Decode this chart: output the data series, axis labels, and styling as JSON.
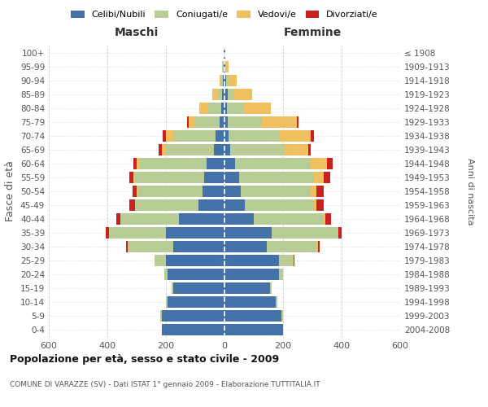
{
  "age_groups": [
    "0-4",
    "5-9",
    "10-14",
    "15-19",
    "20-24",
    "25-29",
    "30-34",
    "35-39",
    "40-44",
    "45-49",
    "50-54",
    "55-59",
    "60-64",
    "65-69",
    "70-74",
    "75-79",
    "80-84",
    "85-89",
    "90-94",
    "95-99",
    "100+"
  ],
  "birth_years": [
    "2004-2008",
    "1999-2003",
    "1994-1998",
    "1989-1993",
    "1984-1988",
    "1979-1983",
    "1974-1978",
    "1969-1973",
    "1964-1968",
    "1959-1963",
    "1954-1958",
    "1949-1953",
    "1944-1948",
    "1939-1943",
    "1934-1938",
    "1929-1933",
    "1924-1928",
    "1919-1923",
    "1914-1918",
    "1909-1913",
    "≤ 1908"
  ],
  "colors": {
    "celibi": "#4472a8",
    "coniugati": "#b8cc96",
    "vedovi": "#f0c060",
    "divorziati": "#cc2020"
  },
  "maschi": {
    "celibi": [
      215,
      215,
      195,
      175,
      195,
      200,
      175,
      200,
      155,
      90,
      75,
      70,
      60,
      35,
      30,
      18,
      12,
      8,
      5,
      3,
      2
    ],
    "coniugati": [
      0,
      5,
      5,
      5,
      10,
      40,
      155,
      195,
      200,
      215,
      220,
      235,
      230,
      165,
      145,
      85,
      45,
      15,
      5,
      2,
      0
    ],
    "vedovi": [
      0,
      0,
      0,
      0,
      0,
      0,
      0,
      0,
      0,
      0,
      5,
      5,
      10,
      15,
      25,
      20,
      30,
      20,
      8,
      2,
      0
    ],
    "divorziati": [
      0,
      0,
      0,
      0,
      0,
      0,
      5,
      10,
      15,
      20,
      15,
      15,
      10,
      10,
      10,
      5,
      0,
      0,
      0,
      0,
      0
    ]
  },
  "femmine": {
    "celibi": [
      200,
      195,
      175,
      155,
      185,
      185,
      145,
      160,
      100,
      70,
      55,
      50,
      35,
      20,
      15,
      12,
      8,
      10,
      5,
      3,
      2
    ],
    "coniugati": [
      0,
      5,
      5,
      5,
      15,
      45,
      170,
      225,
      240,
      235,
      240,
      255,
      260,
      185,
      175,
      115,
      60,
      20,
      8,
      2,
      0
    ],
    "vedovi": [
      0,
      0,
      0,
      0,
      0,
      5,
      5,
      5,
      5,
      10,
      20,
      35,
      55,
      80,
      105,
      120,
      90,
      65,
      30,
      8,
      2
    ],
    "divorziati": [
      0,
      0,
      0,
      0,
      0,
      5,
      5,
      10,
      20,
      25,
      25,
      20,
      20,
      10,
      10,
      5,
      0,
      0,
      0,
      0,
      0
    ]
  },
  "title": "Popolazione per età, sesso e stato civile - 2009",
  "subtitle": "COMUNE DI VARAZZE (SV) - Dati ISTAT 1° gennaio 2009 - Elaborazione TUTTITALIA.IT",
  "xlabel_left": "Maschi",
  "xlabel_right": "Femmine",
  "ylabel_left": "Fasce di età",
  "ylabel_right": "Anni di nascita",
  "xlim": 600,
  "legend_labels": [
    "Celibi/Nubili",
    "Coniugati/e",
    "Vedovi/e",
    "Divorziati/e"
  ],
  "background_color": "#ffffff",
  "grid_color": "#cccccc"
}
